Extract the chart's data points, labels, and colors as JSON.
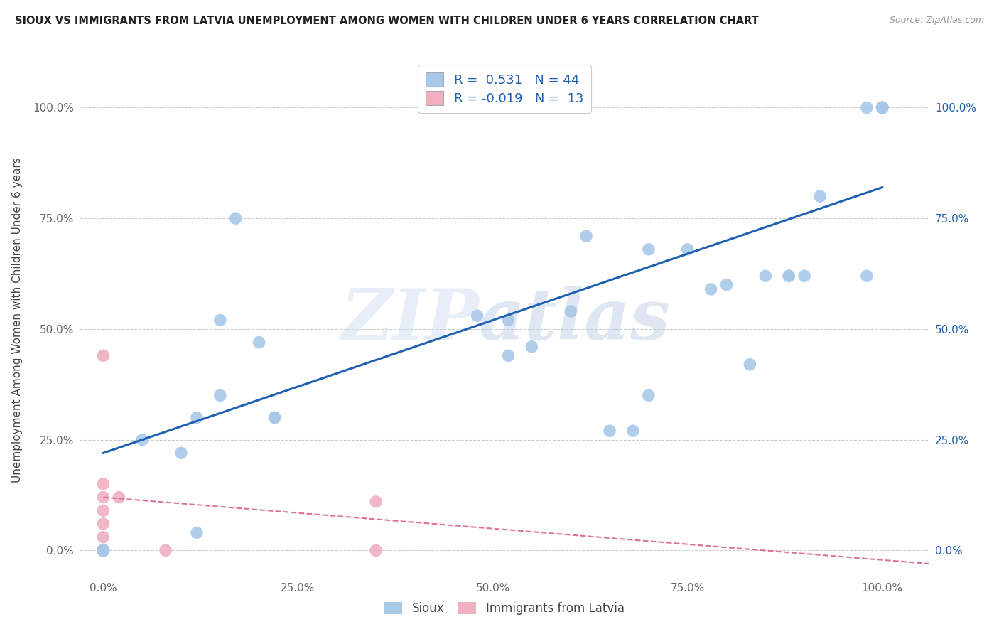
{
  "title": "SIOUX VS IMMIGRANTS FROM LATVIA UNEMPLOYMENT AMONG WOMEN WITH CHILDREN UNDER 6 YEARS CORRELATION CHART",
  "source": "Source: ZipAtlas.com",
  "ylabel": "Unemployment Among Women with Children Under 6 years",
  "sioux_r": 0.531,
  "sioux_n": 44,
  "latvia_r": -0.019,
  "latvia_n": 13,
  "sioux_color": "#a8c8e8",
  "sioux_line_color": "#2060b0",
  "latvia_color": "#f0b0c0",
  "latvia_line_color": "#e07090",
  "watermark_zip": "ZIP",
  "watermark_atlas": "atlas",
  "ytick_labels": [
    "0.0%",
    "25.0%",
    "50.0%",
    "75.0%",
    "100.0%"
  ],
  "ytick_values": [
    0.0,
    0.25,
    0.5,
    0.75,
    1.0
  ],
  "xtick_labels": [
    "0.0%",
    "25.0%",
    "50.0%",
    "75.0%",
    "100.0%"
  ],
  "xtick_values": [
    0.0,
    0.25,
    0.5,
    0.75,
    1.0
  ],
  "sioux_x": [
    0.0,
    0.0,
    0.0,
    0.0,
    0.0,
    0.0,
    0.0,
    0.05,
    0.12,
    0.12,
    0.15,
    0.17,
    0.2,
    0.22,
    0.22,
    0.48,
    0.52,
    0.55,
    0.6,
    0.62,
    0.65,
    0.68,
    0.7,
    0.75,
    0.78,
    0.8,
    0.83,
    0.85,
    0.88,
    0.88,
    0.9,
    0.92,
    0.98,
    1.0,
    1.0,
    1.0,
    1.0,
    1.0,
    1.0,
    0.1,
    0.15,
    0.52,
    0.7,
    0.98
  ],
  "sioux_y": [
    0.0,
    0.0,
    0.0,
    0.0,
    0.0,
    0.0,
    0.0,
    0.25,
    0.04,
    0.3,
    0.52,
    0.75,
    0.47,
    0.3,
    0.3,
    0.53,
    0.52,
    0.46,
    0.54,
    0.71,
    0.27,
    0.27,
    0.35,
    0.68,
    0.59,
    0.6,
    0.42,
    0.62,
    0.62,
    0.62,
    0.62,
    0.8,
    1.0,
    1.0,
    1.0,
    1.0,
    1.0,
    1.0,
    1.0,
    0.22,
    0.35,
    0.44,
    0.68,
    0.62
  ],
  "latvia_x": [
    0.0,
    0.0,
    0.0,
    0.0,
    0.0,
    0.0,
    0.0,
    0.0,
    0.0,
    0.02,
    0.08,
    0.35,
    0.35
  ],
  "latvia_y": [
    0.0,
    0.0,
    0.0,
    0.03,
    0.06,
    0.09,
    0.12,
    0.15,
    0.44,
    0.12,
    0.0,
    0.11,
    0.0
  ],
  "xlim": [
    -0.03,
    1.06
  ],
  "ylim": [
    -0.06,
    1.1
  ],
  "sioux_line_x": [
    0.0,
    1.0
  ],
  "sioux_line_y": [
    0.22,
    0.82
  ],
  "latvia_line_x": [
    0.0,
    1.06
  ],
  "latvia_line_y": [
    0.12,
    -0.03
  ]
}
